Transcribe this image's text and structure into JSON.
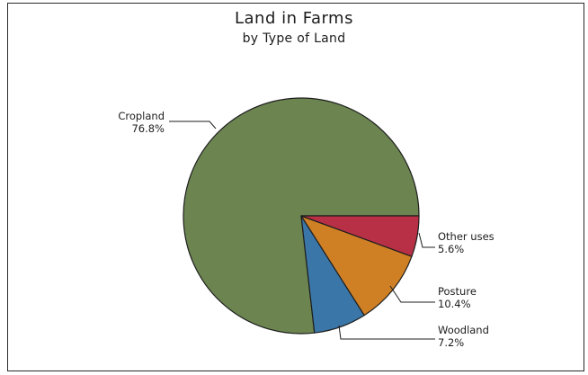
{
  "chart_data": {
    "type": "pie",
    "title": "Land in Farms",
    "subtitle": "by Type of Land",
    "slices": [
      {
        "label": "Cropland",
        "value": 76.8,
        "value_label": "76.8%",
        "color": "#6b8450"
      },
      {
        "label": "Woodland",
        "value": 7.2,
        "value_label": "7.2%",
        "color": "#3b76a8"
      },
      {
        "label": "Posture",
        "value": 10.4,
        "value_label": "10.4%",
        "color": "#cf8025"
      },
      {
        "label": "Other uses",
        "value": 5.6,
        "value_label": "5.6%",
        "color": "#b83046"
      }
    ],
    "start_angle_deg": 0,
    "direction": "clockwise",
    "legend": "none"
  }
}
